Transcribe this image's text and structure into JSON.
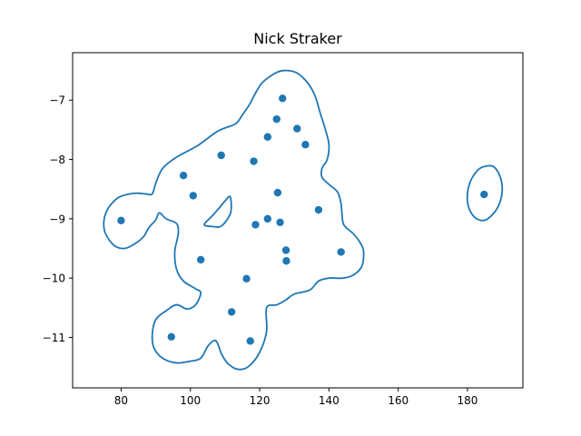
{
  "chart_data": {
    "type": "scatter",
    "title": "Nick Straker",
    "xlabel": "",
    "ylabel": "",
    "xlim": [
      66,
      196
    ],
    "ylim": [
      -11.85,
      -6.2
    ],
    "xticks": [
      80,
      100,
      120,
      140,
      160,
      180
    ],
    "yticks": [
      -7,
      -8,
      -9,
      -10,
      -11
    ],
    "xtick_labels": [
      "80",
      "100",
      "120",
      "140",
      "160",
      "180"
    ],
    "ytick_labels": [
      "−7",
      "−8",
      "−9",
      "−10",
      "−11"
    ],
    "grid": false,
    "series_color": "#1f77b4",
    "points": [
      {
        "x": 80.0,
        "y": -9.03
      },
      {
        "x": 94.5,
        "y": -10.99
      },
      {
        "x": 98.0,
        "y": -8.27
      },
      {
        "x": 100.8,
        "y": -8.61
      },
      {
        "x": 103.0,
        "y": -9.69
      },
      {
        "x": 108.9,
        "y": -7.93
      },
      {
        "x": 111.9,
        "y": -10.57
      },
      {
        "x": 116.2,
        "y": -10.01
      },
      {
        "x": 117.3,
        "y": -11.06
      },
      {
        "x": 118.3,
        "y": -8.03
      },
      {
        "x": 118.8,
        "y": -9.1
      },
      {
        "x": 122.3,
        "y": -7.62
      },
      {
        "x": 122.3,
        "y": -9.0
      },
      {
        "x": 124.9,
        "y": -7.32
      },
      {
        "x": 125.2,
        "y": -8.56
      },
      {
        "x": 125.9,
        "y": -9.06
      },
      {
        "x": 126.6,
        "y": -6.97
      },
      {
        "x": 127.6,
        "y": -9.53
      },
      {
        "x": 127.7,
        "y": -9.71
      },
      {
        "x": 130.8,
        "y": -7.48
      },
      {
        "x": 133.2,
        "y": -7.75
      },
      {
        "x": 137.0,
        "y": -8.85
      },
      {
        "x": 143.5,
        "y": -9.56
      },
      {
        "x": 184.8,
        "y": -8.59
      }
    ],
    "contours": [
      [
        [
          80,
          -8.62
        ],
        [
          84,
          -8.57
        ],
        [
          87,
          -8.58
        ],
        [
          89,
          -8.58
        ],
        [
          90,
          -8.4
        ],
        [
          92,
          -8.15
        ],
        [
          96,
          -7.96
        ],
        [
          102,
          -7.77
        ],
        [
          108,
          -7.52
        ],
        [
          113,
          -7.4
        ],
        [
          115,
          -7.25
        ],
        [
          117,
          -7.08
        ],
        [
          119,
          -6.86
        ],
        [
          121,
          -6.69
        ],
        [
          125,
          -6.53
        ],
        [
          128,
          -6.5
        ],
        [
          131,
          -6.55
        ],
        [
          134,
          -6.72
        ],
        [
          136,
          -6.93
        ],
        [
          137.5,
          -7.22
        ],
        [
          139,
          -7.5
        ],
        [
          140,
          -7.75
        ],
        [
          139.5,
          -8.0
        ],
        [
          138,
          -8.15
        ],
        [
          138,
          -8.3
        ],
        [
          140,
          -8.42
        ],
        [
          142.5,
          -8.55
        ],
        [
          143.5,
          -8.75
        ],
        [
          144,
          -9.05
        ],
        [
          145,
          -9.15
        ],
        [
          147,
          -9.25
        ],
        [
          149,
          -9.4
        ],
        [
          150,
          -9.55
        ],
        [
          149.5,
          -9.8
        ],
        [
          147,
          -9.95
        ],
        [
          144,
          -10.0
        ],
        [
          140,
          -10.0
        ],
        [
          137,
          -10.05
        ],
        [
          134.5,
          -10.2
        ],
        [
          130,
          -10.27
        ],
        [
          127.5,
          -10.37
        ],
        [
          125,
          -10.45
        ],
        [
          122,
          -10.5
        ],
        [
          122,
          -10.9
        ],
        [
          120,
          -11.25
        ],
        [
          117,
          -11.48
        ],
        [
          114,
          -11.54
        ],
        [
          111,
          -11.45
        ],
        [
          109,
          -11.28
        ],
        [
          108,
          -11.12
        ],
        [
          107,
          -11.05
        ],
        [
          105,
          -11.15
        ],
        [
          103,
          -11.35
        ],
        [
          100,
          -11.4
        ],
        [
          96,
          -11.43
        ],
        [
          92,
          -11.35
        ],
        [
          89.5,
          -11.18
        ],
        [
          89,
          -10.95
        ],
        [
          90,
          -10.7
        ],
        [
          93,
          -10.55
        ],
        [
          96,
          -10.45
        ],
        [
          99,
          -10.52
        ],
        [
          101.5,
          -10.45
        ],
        [
          103,
          -10.25
        ],
        [
          101.5,
          -10.18
        ],
        [
          98,
          -10.05
        ],
        [
          96,
          -9.85
        ],
        [
          95.5,
          -9.55
        ],
        [
          96.5,
          -9.25
        ],
        [
          96,
          -9.08
        ],
        [
          93,
          -9.0
        ],
        [
          91,
          -8.9
        ],
        [
          90,
          -9.02
        ],
        [
          88,
          -9.15
        ],
        [
          86.5,
          -9.3
        ],
        [
          84,
          -9.42
        ],
        [
          81,
          -9.5
        ],
        [
          78,
          -9.45
        ],
        [
          75.5,
          -9.25
        ],
        [
          75,
          -9.05
        ],
        [
          76,
          -8.85
        ],
        [
          78,
          -8.7
        ],
        [
          80,
          -8.62
        ]
      ],
      [
        [
          104,
          -9.1
        ],
        [
          106,
          -8.97
        ],
        [
          108,
          -8.84
        ],
        [
          110,
          -8.7
        ],
        [
          111.5,
          -8.63
        ],
        [
          111.6,
          -8.9
        ],
        [
          109,
          -9.12
        ],
        [
          106.5,
          -9.13
        ],
        [
          104,
          -9.1
        ]
      ],
      [
        [
          184.8,
          -8.12
        ],
        [
          187.5,
          -8.12
        ],
        [
          189.5,
          -8.3
        ],
        [
          190.0,
          -8.55
        ],
        [
          188.8,
          -8.8
        ],
        [
          186.5,
          -8.97
        ],
        [
          184.5,
          -9.03
        ],
        [
          182.0,
          -8.97
        ],
        [
          180.3,
          -8.8
        ],
        [
          180.0,
          -8.57
        ],
        [
          181.0,
          -8.35
        ],
        [
          183.0,
          -8.18
        ],
        [
          184.8,
          -8.12
        ]
      ]
    ]
  }
}
